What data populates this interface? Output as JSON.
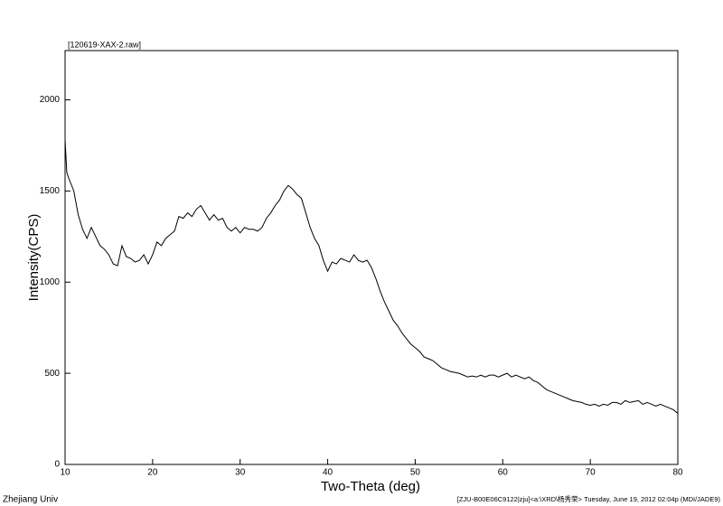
{
  "chart_data": {
    "type": "line",
    "title": "[120619-XAX-2.raw]",
    "x_label": "Two-Theta (deg)",
    "y_label": "Intensity(CPS)",
    "footer_left": "Zhejiang Univ",
    "footer_right": "[ZJU-B00E06C9122|zju]<a:\\XRD\\杨秀荣> Tuesday, June 19, 2012 02:04p (MDI/JADE9)",
    "color": "#000000",
    "x": [
      10,
      10.2,
      10.5,
      11,
      11.5,
      12,
      12.5,
      13,
      13.5,
      14,
      14.5,
      15,
      15.5,
      16,
      16.5,
      17,
      17.5,
      18,
      18.5,
      19,
      19.5,
      20,
      20.5,
      21,
      21.5,
      22,
      22.5,
      23,
      23.5,
      24,
      24.5,
      25,
      25.5,
      26,
      26.5,
      27,
      27.5,
      28,
      28.5,
      29,
      29.5,
      30,
      30.5,
      31,
      31.5,
      32,
      32.5,
      33,
      33.5,
      34,
      34.5,
      35,
      35.5,
      36,
      36.5,
      37,
      37.5,
      38,
      38.5,
      39,
      39.5,
      40,
      40.5,
      41,
      41.5,
      42,
      42.5,
      43,
      43.5,
      44,
      44.5,
      45,
      45.5,
      46,
      46.5,
      47,
      47.5,
      48,
      48.5,
      49,
      49.5,
      50,
      50.5,
      51,
      51.5,
      52,
      52.5,
      53,
      53.5,
      54,
      54.5,
      55,
      55.5,
      56,
      56.5,
      57,
      57.5,
      58,
      58.5,
      59,
      59.5,
      60,
      60.5,
      61,
      61.5,
      62,
      62.5,
      63,
      63.5,
      64,
      64.5,
      65,
      65.5,
      66,
      66.5,
      67,
      67.5,
      68,
      68.5,
      69,
      69.5,
      70,
      70.5,
      71,
      71.5,
      72,
      72.5,
      73,
      73.5,
      74,
      74.5,
      75,
      75.5,
      76,
      76.5,
      77,
      77.5,
      78,
      78.5,
      79,
      79.5,
      80
    ],
    "values": [
      1780,
      1600,
      1560,
      1500,
      1370,
      1290,
      1240,
      1300,
      1250,
      1200,
      1180,
      1150,
      1100,
      1090,
      1200,
      1140,
      1130,
      1110,
      1120,
      1150,
      1100,
      1150,
      1220,
      1200,
      1240,
      1260,
      1280,
      1360,
      1350,
      1380,
      1360,
      1400,
      1420,
      1380,
      1340,
      1370,
      1340,
      1350,
      1300,
      1280,
      1300,
      1270,
      1300,
      1290,
      1290,
      1280,
      1300,
      1350,
      1380,
      1420,
      1450,
      1500,
      1530,
      1510,
      1480,
      1460,
      1380,
      1300,
      1240,
      1200,
      1120,
      1060,
      1110,
      1100,
      1130,
      1120,
      1110,
      1150,
      1120,
      1110,
      1120,
      1080,
      1020,
      950,
      890,
      840,
      790,
      760,
      720,
      690,
      660,
      640,
      620,
      590,
      580,
      570,
      550,
      530,
      520,
      510,
      505,
      500,
      490,
      480,
      485,
      480,
      490,
      480,
      490,
      490,
      480,
      490,
      500,
      480,
      490,
      480,
      470,
      480,
      460,
      450,
      430,
      410,
      400,
      390,
      380,
      370,
      360,
      350,
      345,
      340,
      330,
      325,
      330,
      320,
      330,
      325,
      340,
      340,
      330,
      350,
      340,
      345,
      350,
      330,
      340,
      330,
      320,
      330,
      320,
      310,
      300,
      280
    ],
    "xlim": [
      10,
      80
    ],
    "xticks": [
      10,
      20,
      30,
      40,
      50,
      60,
      70,
      80
    ],
    "ylim": [
      0,
      2270
    ],
    "yticks": [
      0,
      500,
      1000,
      1500,
      2000
    ]
  }
}
